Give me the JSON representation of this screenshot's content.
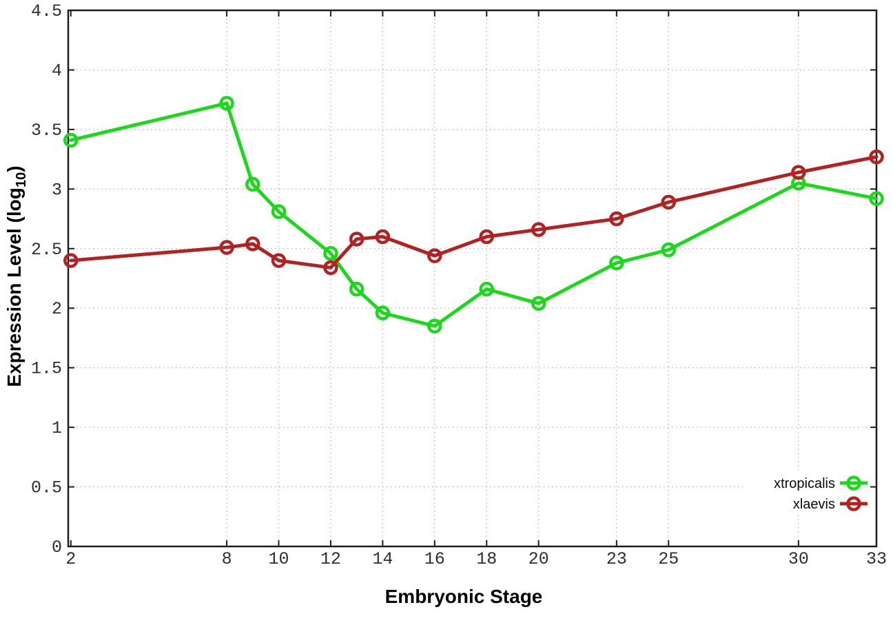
{
  "figure": {
    "background": "#ffffff",
    "axis_color": "#1c1c1c",
    "grid_color": "#b6bdca",
    "tick_label_color": "#2e2e2e"
  },
  "chart_data": {
    "type": "line",
    "title": "",
    "xlabel": "Embryonic Stage",
    "ylabel": {
      "text": "Expression Level (log",
      "subscript": "10",
      "suffix": ")"
    },
    "x": [
      2,
      8,
      9,
      10,
      12,
      13,
      14,
      16,
      18,
      20,
      23,
      25,
      30,
      33
    ],
    "series": [
      {
        "name": "xtropicalis",
        "color": "#1bd81b",
        "values": [
          3.41,
          3.72,
          3.04,
          2.81,
          2.46,
          2.16,
          1.96,
          1.85,
          2.16,
          2.04,
          2.38,
          2.49,
          3.05,
          2.92
        ]
      },
      {
        "name": "xlaevis",
        "color": "#b22222",
        "values": [
          2.4,
          2.51,
          2.54,
          2.4,
          2.34,
          2.58,
          2.6,
          2.44,
          2.6,
          2.66,
          2.75,
          2.89,
          3.14,
          3.27
        ]
      }
    ],
    "x_ticks": [
      2,
      8,
      10,
      12,
      14,
      16,
      18,
      20,
      23,
      25,
      30,
      33
    ],
    "y_ticks": [
      0,
      0.5,
      1,
      1.5,
      2,
      2.5,
      3,
      3.5,
      4,
      4.5
    ],
    "xlim": [
      1.9,
      33
    ],
    "ylim": [
      0,
      4.5
    ],
    "grid": true,
    "marker": "open-circle",
    "legend_position": "bottom-right"
  }
}
